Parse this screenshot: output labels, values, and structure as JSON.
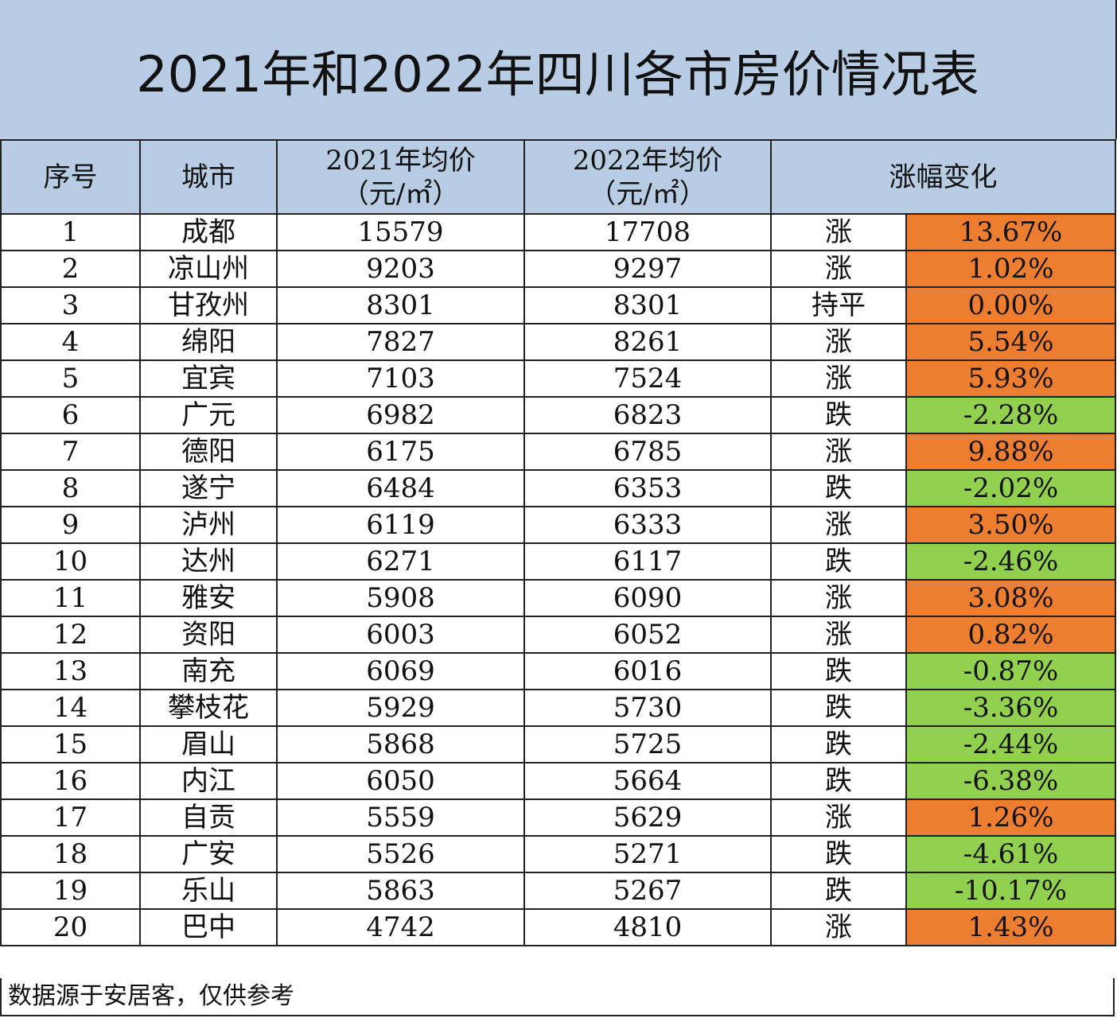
{
  "header": {
    "title": "2021年和2022年四川各市房价情况表"
  },
  "table": {
    "columns": [
      "序号",
      "城市",
      "2021年均价\n（元/㎡）",
      "2022年均价\n（元/㎡）",
      "涨幅变化"
    ],
    "rise_color": "#ed7d31",
    "fall_color": "#92d050",
    "rows": [
      [
        1,
        "成都",
        15579,
        17708,
        "涨",
        "13.67%"
      ],
      [
        2,
        "凉山州",
        9203,
        9297,
        "涨",
        "1.02%"
      ],
      [
        3,
        "甘孜州",
        8301,
        8301,
        "持平",
        "0.00%"
      ],
      [
        4,
        "绵阳",
        7827,
        8261,
        "涨",
        "5.54%"
      ],
      [
        5,
        "宜宾",
        7103,
        7524,
        "涨",
        "5.93%"
      ],
      [
        6,
        "广元",
        6982,
        6823,
        "跌",
        "-2.28%"
      ],
      [
        7,
        "德阳",
        6175,
        6785,
        "涨",
        "9.88%"
      ],
      [
        8,
        "遂宁",
        6484,
        6353,
        "跌",
        "-2.02%"
      ],
      [
        9,
        "泸州",
        6119,
        6333,
        "涨",
        "3.50%"
      ],
      [
        10,
        "达州",
        6271,
        6117,
        "跌",
        "-2.46%"
      ],
      [
        11,
        "雅安",
        5908,
        6090,
        "涨",
        "3.08%"
      ],
      [
        12,
        "资阳",
        6003,
        6052,
        "涨",
        "0.82%"
      ],
      [
        13,
        "南充",
        6069,
        6016,
        "跌",
        "-0.87%"
      ],
      [
        14,
        "攀枝花",
        5929,
        5730,
        "跌",
        "-3.36%"
      ],
      [
        15,
        "眉山",
        5868,
        5725,
        "跌",
        "-2.44%"
      ],
      [
        16,
        "内江",
        6050,
        5664,
        "跌",
        "-6.38%"
      ],
      [
        17,
        "自贡",
        5559,
        5629,
        "涨",
        "1.26%"
      ],
      [
        18,
        "广安",
        5526,
        5271,
        "跌",
        "-4.61%"
      ],
      [
        19,
        "乐山",
        5863,
        5267,
        "跌",
        "-10.17%"
      ],
      [
        20,
        "巴中",
        4742,
        4810,
        "涨",
        "1.43%"
      ]
    ]
  },
  "footer": {
    "note": "数据源于安居客，仅供参考"
  }
}
